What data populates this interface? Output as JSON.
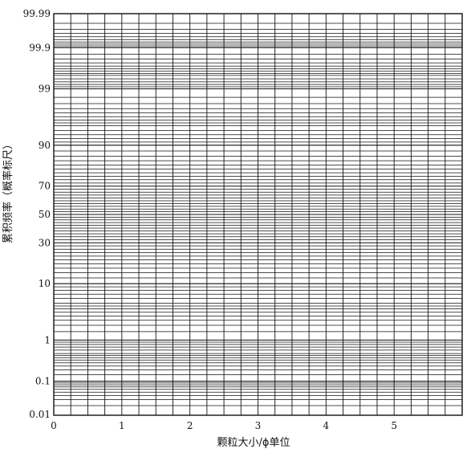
{
  "chart_data": {
    "type": "probability-paper",
    "title": "",
    "xlabel": "颗粒大小/ϕ单位",
    "ylabel": "累积频率（概率标尺）",
    "x_scale": "linear",
    "y_scale": "normal-probability",
    "xlim": [
      0,
      6
    ],
    "ylim": [
      0.01,
      99.99
    ],
    "x_ticks": [
      0,
      1,
      2,
      3,
      4,
      5
    ],
    "x_tick_labels": [
      "0",
      "1",
      "2",
      "3",
      "4",
      "5"
    ],
    "x_minor_step": 0.25,
    "y_ticks": [
      0.01,
      0.1,
      1,
      10,
      30,
      50,
      70,
      90,
      99,
      99.9,
      99.99
    ],
    "y_tick_labels": [
      "0.01",
      "0.1",
      "1",
      "10",
      "30",
      "50",
      "70",
      "90",
      "99",
      "99.9",
      "99.99"
    ],
    "y_gridlines": [
      0.01,
      0.02,
      0.03,
      0.04,
      0.05,
      0.06,
      0.07,
      0.08,
      0.09,
      0.1,
      0.15,
      0.2,
      0.25,
      0.3,
      0.35,
      0.4,
      0.45,
      0.5,
      0.6,
      0.7,
      0.8,
      0.9,
      1,
      1.5,
      2,
      2.5,
      3,
      3.5,
      4,
      4.5,
      5,
      6,
      7,
      8,
      9,
      10,
      12,
      14,
      16,
      18,
      20,
      22,
      24,
      26,
      28,
      30,
      32,
      34,
      36,
      38,
      40,
      42,
      44,
      46,
      48,
      50,
      52,
      54,
      56,
      58,
      60,
      62,
      64,
      66,
      68,
      70,
      72,
      74,
      76,
      78,
      80,
      82,
      84,
      86,
      88,
      90,
      91,
      92,
      93,
      94,
      95,
      95.5,
      96,
      96.5,
      97,
      97.5,
      98,
      98.5,
      99,
      99.1,
      99.2,
      99.3,
      99.4,
      99.5,
      99.55,
      99.6,
      99.65,
      99.7,
      99.75,
      99.8,
      99.85,
      99.9,
      99.91,
      99.92,
      99.93,
      99.94,
      99.95,
      99.96,
      99.97,
      99.98,
      99.99
    ],
    "grid": true,
    "legend": "none"
  }
}
